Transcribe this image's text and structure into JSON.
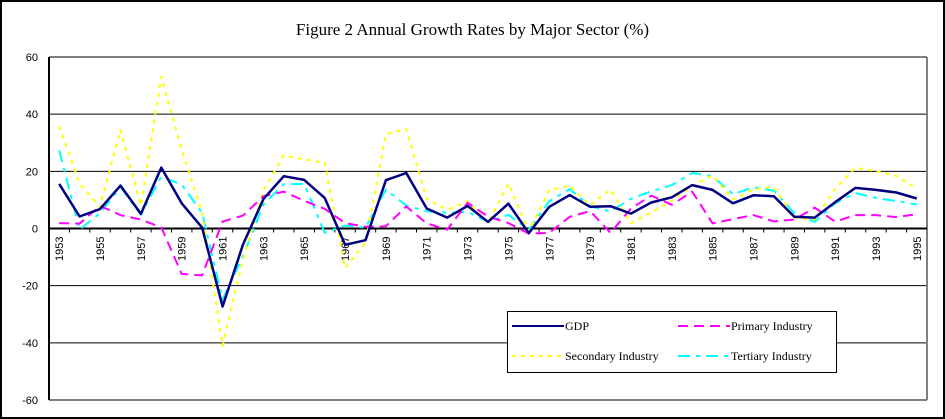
{
  "chart_data": {
    "type": "line",
    "title": "Figure 2   Annual Growth Rates by Major Sector (%)",
    "xlabel": "",
    "ylabel": "",
    "ylim": [
      -60,
      60
    ],
    "yticks": [
      "60",
      "40",
      "20",
      "0",
      "-20",
      "-40",
      "-60"
    ],
    "ytick_values": [
      60,
      40,
      20,
      0,
      -20,
      -40,
      -60
    ],
    "grid": true,
    "legend_position": "bottom-right",
    "x": [
      "1953",
      "1954",
      "1955",
      "1956",
      "1957",
      "1958",
      "1959",
      "1960",
      "1961",
      "1962",
      "1963",
      "1964",
      "1965",
      "1966",
      "1967",
      "1968",
      "1969",
      "1970",
      "1971",
      "1972",
      "1973",
      "1974",
      "1975",
      "1976",
      "1977",
      "1978",
      "1979",
      "1980",
      "1981",
      "1982",
      "1983",
      "1984",
      "1985",
      "1986",
      "1987",
      "1988",
      "1989",
      "1990",
      "1991",
      "1992",
      "1993",
      "1994",
      "1995"
    ],
    "xtick_labels": [
      "1953",
      "1955",
      "1957",
      "1959",
      "1961",
      "1963",
      "1965",
      "1967",
      "1969",
      "1971",
      "1973",
      "1975",
      "1977",
      "1979",
      "1981",
      "1983",
      "1985",
      "1987",
      "1989",
      "1991",
      "1993",
      "1995"
    ],
    "series": [
      {
        "name": "GDP",
        "color": "#000080",
        "style": "solid",
        "values": [
          15.6,
          4.2,
          6.8,
          15.0,
          5.1,
          21.3,
          8.8,
          0.3,
          -27.3,
          -5.6,
          10.3,
          18.3,
          17.0,
          10.7,
          -5.7,
          -4.1,
          16.9,
          19.4,
          7.0,
          3.8,
          7.9,
          2.3,
          8.7,
          -1.6,
          7.6,
          11.7,
          7.6,
          7.8,
          5.2,
          9.1,
          10.9,
          15.2,
          13.5,
          8.8,
          11.6,
          11.3,
          4.1,
          3.8,
          9.2,
          14.2,
          13.5,
          12.6,
          10.5
        ]
      },
      {
        "name": "Primary Industry",
        "color": "#FF00FF",
        "style": "dash",
        "values": [
          1.9,
          1.7,
          7.9,
          4.7,
          3.1,
          0.4,
          -15.9,
          -16.4,
          2.4,
          4.5,
          11.3,
          12.9,
          9.7,
          6.9,
          1.9,
          0.6,
          0.8,
          7.7,
          1.8,
          -0.4,
          9.0,
          4.2,
          1.9,
          -1.8,
          -1.5,
          4.1,
          6.1,
          -1.5,
          7.0,
          11.5,
          8.3,
          12.9,
          1.8,
          3.3,
          4.7,
          2.5,
          3.1,
          7.3,
          2.4,
          4.7,
          4.7,
          4.0,
          5.0
        ]
      },
      {
        "name": "Secondary Industry",
        "color": "#FFFF00",
        "style": "dot",
        "values": [
          35.8,
          15.7,
          7.6,
          34.5,
          8.0,
          53.1,
          27.6,
          5.6,
          -41.1,
          -10.8,
          13.3,
          25.6,
          24.2,
          23.0,
          -13.8,
          -5.0,
          33.0,
          34.8,
          10.2,
          6.6,
          9.5,
          1.9,
          15.7,
          -1.0,
          13.4,
          15.0,
          8.2,
          13.6,
          1.9,
          5.6,
          9.7,
          14.9,
          18.6,
          10.2,
          13.7,
          14.5,
          3.8,
          3.2,
          13.9,
          21.2,
          20.1,
          18.4,
          13.9
        ]
      },
      {
        "name": "Tertiary Industry",
        "color": "#00FFFF",
        "style": "dashdot",
        "values": [
          27.3,
          -0.4,
          5.4,
          14.5,
          4.8,
          18.2,
          15.4,
          5.5,
          -24.8,
          -9.7,
          8.4,
          15.5,
          15.6,
          -1.5,
          1.0,
          0.3,
          13.6,
          8.0,
          6.0,
          5.5,
          5.8,
          2.3,
          4.8,
          -0.5,
          9.6,
          13.8,
          7.8,
          5.9,
          10.4,
          13.0,
          15.2,
          19.4,
          18.3,
          12.0,
          14.4,
          13.2,
          5.4,
          2.3,
          8.8,
          12.4,
          10.7,
          9.6,
          8.4
        ]
      }
    ]
  }
}
